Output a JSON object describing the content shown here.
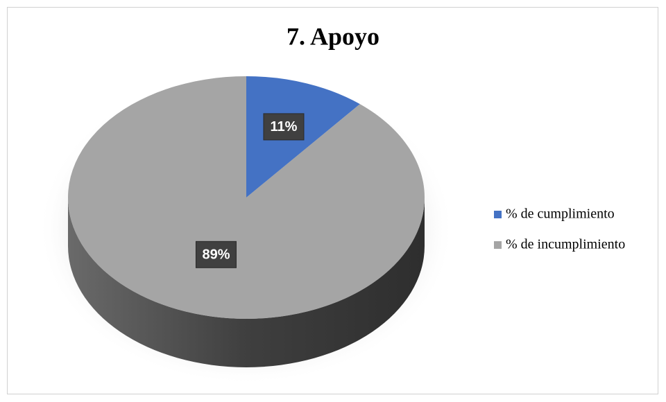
{
  "chart_data": {
    "type": "pie",
    "title": "7. Apoyo",
    "categories": [
      "% de cumplimiento",
      "% de incumplimiento"
    ],
    "values": [
      11,
      89
    ],
    "value_labels": [
      "11%",
      "89%"
    ],
    "colors": [
      "#4472c4",
      "#a5a5a5"
    ],
    "legend": "right"
  }
}
